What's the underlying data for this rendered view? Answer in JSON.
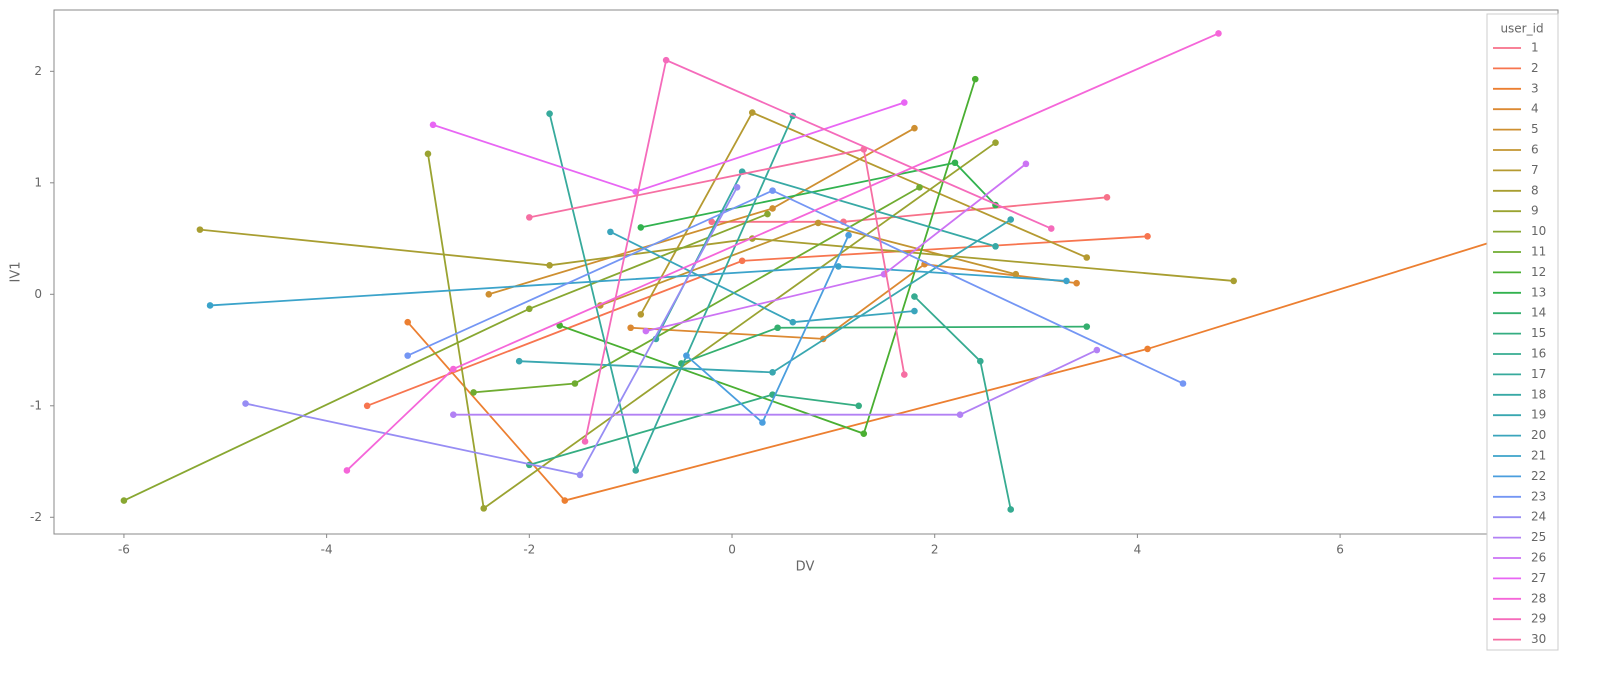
{
  "chart_data": {
    "type": "line",
    "x_label": "DV",
    "y_label": "IV1",
    "legend_title": "user_id",
    "xlim": [
      -6.69,
      8.15
    ],
    "xticks": [
      -6,
      -4,
      -2,
      0,
      2,
      4,
      6
    ],
    "ylim": [
      -2.15,
      2.55
    ],
    "yticks": [
      -2,
      -1,
      0,
      1,
      2
    ],
    "series": [
      {
        "name": "1",
        "color": "#f77189",
        "x": [
          -0.2,
          1.1,
          3.7
        ],
        "values": [
          0.65,
          0.65,
          0.87
        ]
      },
      {
        "name": "2",
        "color": "#f7754f",
        "x": [
          -3.6,
          0.1,
          4.1
        ],
        "values": [
          -1.0,
          0.3,
          0.52
        ]
      },
      {
        "name": "3",
        "color": "#ec7f31",
        "x": [
          -3.2,
          -1.65,
          4.1,
          7.5
        ],
        "values": [
          -0.25,
          -1.85,
          -0.49,
          0.47
        ]
      },
      {
        "name": "4",
        "color": "#dc8932",
        "x": [
          -1.0,
          0.9,
          1.9,
          3.4
        ],
        "values": [
          -0.3,
          -0.4,
          0.27,
          0.1
        ]
      },
      {
        "name": "5",
        "color": "#ce8f31",
        "x": [
          -2.4,
          0.4,
          1.8
        ],
        "values": [
          0.0,
          0.77,
          1.49
        ]
      },
      {
        "name": "6",
        "color": "#c29431",
        "x": [
          -1.3,
          0.85,
          2.8
        ],
        "values": [
          -0.1,
          0.64,
          0.18
        ]
      },
      {
        "name": "7",
        "color": "#b59a31",
        "x": [
          -0.9,
          0.2,
          3.5
        ],
        "values": [
          -0.18,
          1.63,
          0.33
        ]
      },
      {
        "name": "8",
        "color": "#a89e31",
        "x": [
          -5.25,
          -1.8,
          0.2,
          4.95
        ],
        "values": [
          0.58,
          0.26,
          0.5,
          0.12
        ]
      },
      {
        "name": "9",
        "color": "#9aa331",
        "x": [
          -3.0,
          -2.45,
          2.6
        ],
        "values": [
          1.26,
          -1.92,
          1.36
        ]
      },
      {
        "name": "10",
        "color": "#88a731",
        "x": [
          -6.0,
          -2.0,
          0.35
        ],
        "values": [
          -1.85,
          -0.13,
          0.72
        ]
      },
      {
        "name": "11",
        "color": "#6fac31",
        "x": [
          -2.55,
          -1.55,
          1.85
        ],
        "values": [
          -0.88,
          -0.8,
          0.96
        ]
      },
      {
        "name": "12",
        "color": "#4aaf32",
        "x": [
          -1.7,
          1.3,
          2.4
        ],
        "values": [
          -0.28,
          -1.25,
          1.93
        ]
      },
      {
        "name": "13",
        "color": "#32b24f",
        "x": [
          -0.9,
          2.2,
          2.6
        ],
        "values": [
          0.6,
          1.18,
          0.8
        ]
      },
      {
        "name": "14",
        "color": "#34af6f",
        "x": [
          -0.5,
          0.45,
          3.5
        ],
        "values": [
          -0.62,
          -0.3,
          -0.29
        ]
      },
      {
        "name": "15",
        "color": "#35ad82",
        "x": [
          -2.0,
          0.4,
          1.25
        ],
        "values": [
          -1.53,
          -0.9,
          -1.0
        ]
      },
      {
        "name": "16",
        "color": "#36ab91",
        "x": [
          1.8,
          2.45,
          2.75
        ],
        "values": [
          -0.02,
          -0.6,
          -1.93
        ]
      },
      {
        "name": "17",
        "color": "#37aa9c",
        "x": [
          -1.8,
          -0.95,
          0.6
        ],
        "values": [
          1.62,
          -1.58,
          1.6
        ]
      },
      {
        "name": "18",
        "color": "#38a9a5",
        "x": [
          -0.75,
          0.1,
          2.6
        ],
        "values": [
          -0.4,
          1.1,
          0.43
        ]
      },
      {
        "name": "19",
        "color": "#39a7b0",
        "x": [
          -2.1,
          0.4,
          2.75
        ],
        "values": [
          -0.6,
          -0.7,
          0.67
        ]
      },
      {
        "name": "20",
        "color": "#3aa5bc",
        "x": [
          -1.2,
          0.6,
          1.8
        ],
        "values": [
          0.56,
          -0.25,
          -0.15
        ]
      },
      {
        "name": "21",
        "color": "#3ba3ca",
        "x": [
          -5.15,
          1.05,
          3.3
        ],
        "values": [
          -0.1,
          0.25,
          0.12
        ]
      },
      {
        "name": "22",
        "color": "#4a9ede",
        "x": [
          -0.45,
          0.3,
          1.15
        ],
        "values": [
          -0.55,
          -1.15,
          0.53
        ]
      },
      {
        "name": "23",
        "color": "#7496f4",
        "x": [
          -3.2,
          0.4,
          4.45
        ],
        "values": [
          -0.55,
          0.93,
          -0.8
        ]
      },
      {
        "name": "24",
        "color": "#978df4",
        "x": [
          -4.8,
          -1.5,
          0.05
        ],
        "values": [
          -0.98,
          -1.62,
          0.96
        ]
      },
      {
        "name": "25",
        "color": "#b281f4",
        "x": [
          -2.75,
          2.25,
          3.6
        ],
        "values": [
          -1.08,
          -1.08,
          -0.5
        ]
      },
      {
        "name": "26",
        "color": "#cc73f4",
        "x": [
          -0.85,
          1.5,
          2.9
        ],
        "values": [
          -0.33,
          0.18,
          1.17
        ]
      },
      {
        "name": "27",
        "color": "#e866f4",
        "x": [
          -2.95,
          -0.95,
          1.7
        ],
        "values": [
          1.52,
          0.92,
          1.72
        ]
      },
      {
        "name": "28",
        "color": "#f566d9",
        "x": [
          -3.8,
          -2.75,
          4.8
        ],
        "values": [
          -1.58,
          -0.67,
          2.34
        ]
      },
      {
        "name": "29",
        "color": "#f56bbb",
        "x": [
          -1.45,
          -0.65,
          3.15
        ],
        "values": [
          -1.32,
          2.1,
          0.59
        ]
      },
      {
        "name": "30",
        "color": "#f66fa3",
        "x": [
          -2.0,
          1.3,
          1.7
        ],
        "values": [
          0.69,
          1.3,
          -0.72
        ]
      }
    ]
  }
}
